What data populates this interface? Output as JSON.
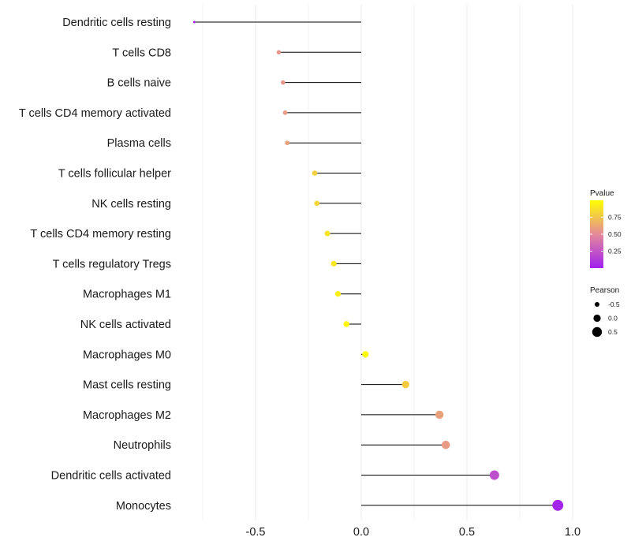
{
  "chart_data": {
    "type": "lollipop",
    "title": "",
    "xlabel": "",
    "ylabel": "",
    "xlim": [
      -0.8,
      1.0
    ],
    "x_ticks": [
      -0.5,
      0.0,
      0.5,
      1.0
    ],
    "x_tick_labels": [
      "-0.5",
      "0.0",
      "0.5",
      "1.0"
    ],
    "grid": true,
    "categories": [
      "Dendritic cells resting",
      "T cells CD8",
      "B cells naive",
      "T cells CD4 memory activated",
      "Plasma cells",
      "T cells follicular helper",
      "NK cells resting",
      "T cells CD4 memory resting",
      "T cells regulatory  Tregs ",
      "Macrophages M1",
      "NK cells activated",
      "Macrophages M0",
      "Mast cells resting",
      "Macrophages M2",
      "Neutrophils",
      "Dendritic cells activated",
      "Monocytes"
    ],
    "pearson": [
      -0.79,
      -0.39,
      -0.37,
      -0.36,
      -0.35,
      -0.22,
      -0.21,
      -0.16,
      -0.13,
      -0.11,
      -0.07,
      0.02,
      0.21,
      0.37,
      0.4,
      0.63,
      0.93
    ],
    "pvalue": [
      0.02,
      0.55,
      0.55,
      0.57,
      0.6,
      0.8,
      0.82,
      0.88,
      0.9,
      0.93,
      0.97,
      0.99,
      0.78,
      0.6,
      0.57,
      0.22,
      0.03
    ],
    "color_legend": {
      "title": "Pvalue",
      "range": [
        0.0,
        1.0
      ],
      "ticks": [
        0.25,
        0.5,
        0.75
      ],
      "tick_labels": [
        "0.25",
        "0.50",
        "0.75"
      ],
      "low_color": "#a020f0",
      "mid_color": "#e48a9a",
      "high_color": "#ffff00"
    },
    "size_legend": {
      "title": "Pearson",
      "values": [
        -0.5,
        0.0,
        0.5
      ],
      "labels": [
        "-0.5",
        "0.0",
        "0.5"
      ]
    },
    "stem_color": "#000000",
    "grid_color": "#ebebeb"
  }
}
